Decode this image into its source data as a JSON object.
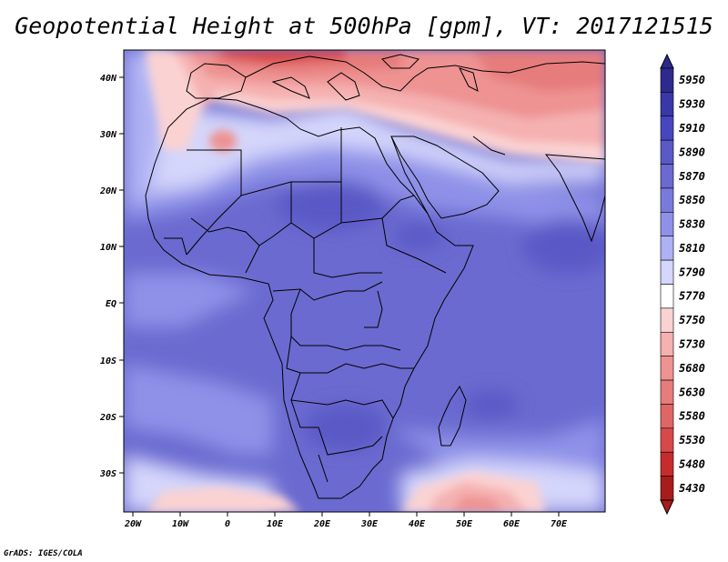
{
  "title": "Geopotential Height at 500hPa [gpm], VT: 2017121515",
  "credit": "GrADS: IGES/COLA",
  "map": {
    "lat_range": [
      -37,
      45
    ],
    "lon_range": [
      -22,
      80
    ],
    "lat_labels": [
      "40N",
      "30N",
      "20N",
      "10N",
      "EQ",
      "10S",
      "20S",
      "30S"
    ],
    "lon_labels": [
      "20W",
      "10W",
      "0",
      "10E",
      "20E",
      "30E",
      "40E",
      "50E",
      "60E",
      "70E"
    ]
  },
  "colorbar": {
    "levels": [
      "5950",
      "5930",
      "5910",
      "5890",
      "5870",
      "5850",
      "5830",
      "5810",
      "5790",
      "5770",
      "5750",
      "5730",
      "5680",
      "5630",
      "5580",
      "5530",
      "5480",
      "5430"
    ],
    "colors": [
      "#2e2a8c",
      "#3a37a8",
      "#4846be",
      "#5a59c6",
      "#6a6ad0",
      "#7a7ade",
      "#8f91e8",
      "#aeb1f3",
      "#d4d6fb",
      "#ffffff",
      "#fbd2d2",
      "#f5b0b0",
      "#ee9292",
      "#e67c7c",
      "#e06666",
      "#d84a4a",
      "#c72c2c",
      "#a81c1c"
    ]
  }
}
